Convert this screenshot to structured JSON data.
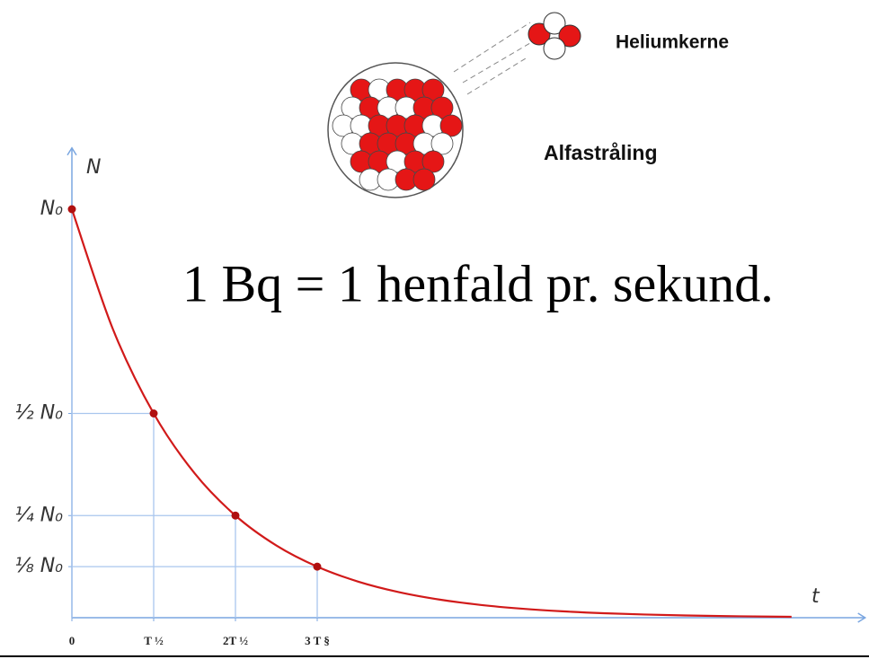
{
  "chart_data": {
    "type": "line",
    "y_label": "N",
    "x_label": "t",
    "annotations": [
      "Heliumkerne",
      "Alfastråling",
      "1 Bq = 1 henfald pr. sekund."
    ],
    "xlim": [
      0,
      9.7
    ],
    "ylim": [
      0,
      1.15
    ],
    "xticks": [
      {
        "value": 0,
        "label": "0"
      },
      {
        "value": 1,
        "label": "T ½"
      },
      {
        "value": 2,
        "label": "2T ½"
      },
      {
        "value": 3,
        "label": "3 T §"
      }
    ],
    "yticks": [
      {
        "value": 1,
        "label": "N₀"
      },
      {
        "value": 0.5,
        "label": "½ N₀"
      },
      {
        "value": 0.25,
        "label": "¼ N₀"
      },
      {
        "value": 0.125,
        "label": "⅛ N₀"
      }
    ],
    "series": [
      {
        "color": "#d11a1a",
        "x": [
          0,
          0.5,
          1,
          1.5,
          2,
          2.5,
          3,
          3.5,
          4,
          4.5,
          5,
          5.5,
          6,
          6.5,
          7,
          7.5,
          8,
          8.5,
          8.8
        ],
        "values": [
          1,
          0.7071,
          0.5,
          0.3536,
          0.25,
          0.1768,
          0.125,
          0.0884,
          0.0625,
          0.0442,
          0.03125,
          0.0221,
          0.0156,
          0.011,
          0.0078,
          0.0055,
          0.0039,
          0.0028,
          0.0022
        ]
      },
      {
        "color": "#b01010",
        "marker": true,
        "x": [
          0,
          1,
          2,
          3
        ],
        "values": [
          1,
          0.5,
          0.25,
          0.125
        ]
      }
    ],
    "axis_color": "#7aa6e0",
    "guide_color": "#a9c6ee"
  }
}
